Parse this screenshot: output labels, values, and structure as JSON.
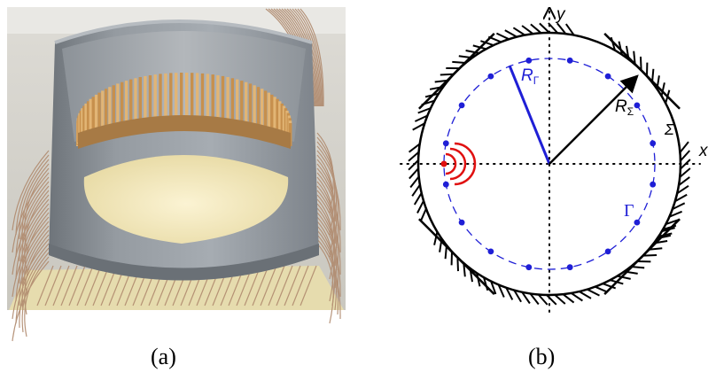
{
  "captions": {
    "a": "(a)",
    "b": "(b)"
  },
  "photo": {
    "subject": "circular transducer array"
  },
  "diagram": {
    "axis_y_label": "y",
    "axis_x_label": "x",
    "radius_gamma_label": "R",
    "radius_gamma_sub": "Γ",
    "radius_sigma_label": "R",
    "radius_sigma_sub": "Σ",
    "boundary_label": "Σ",
    "array_label": "Γ",
    "colors": {
      "array": "#1f1fd6",
      "source": "#e01010",
      "boundary": "#000000"
    },
    "array_points": 16
  }
}
